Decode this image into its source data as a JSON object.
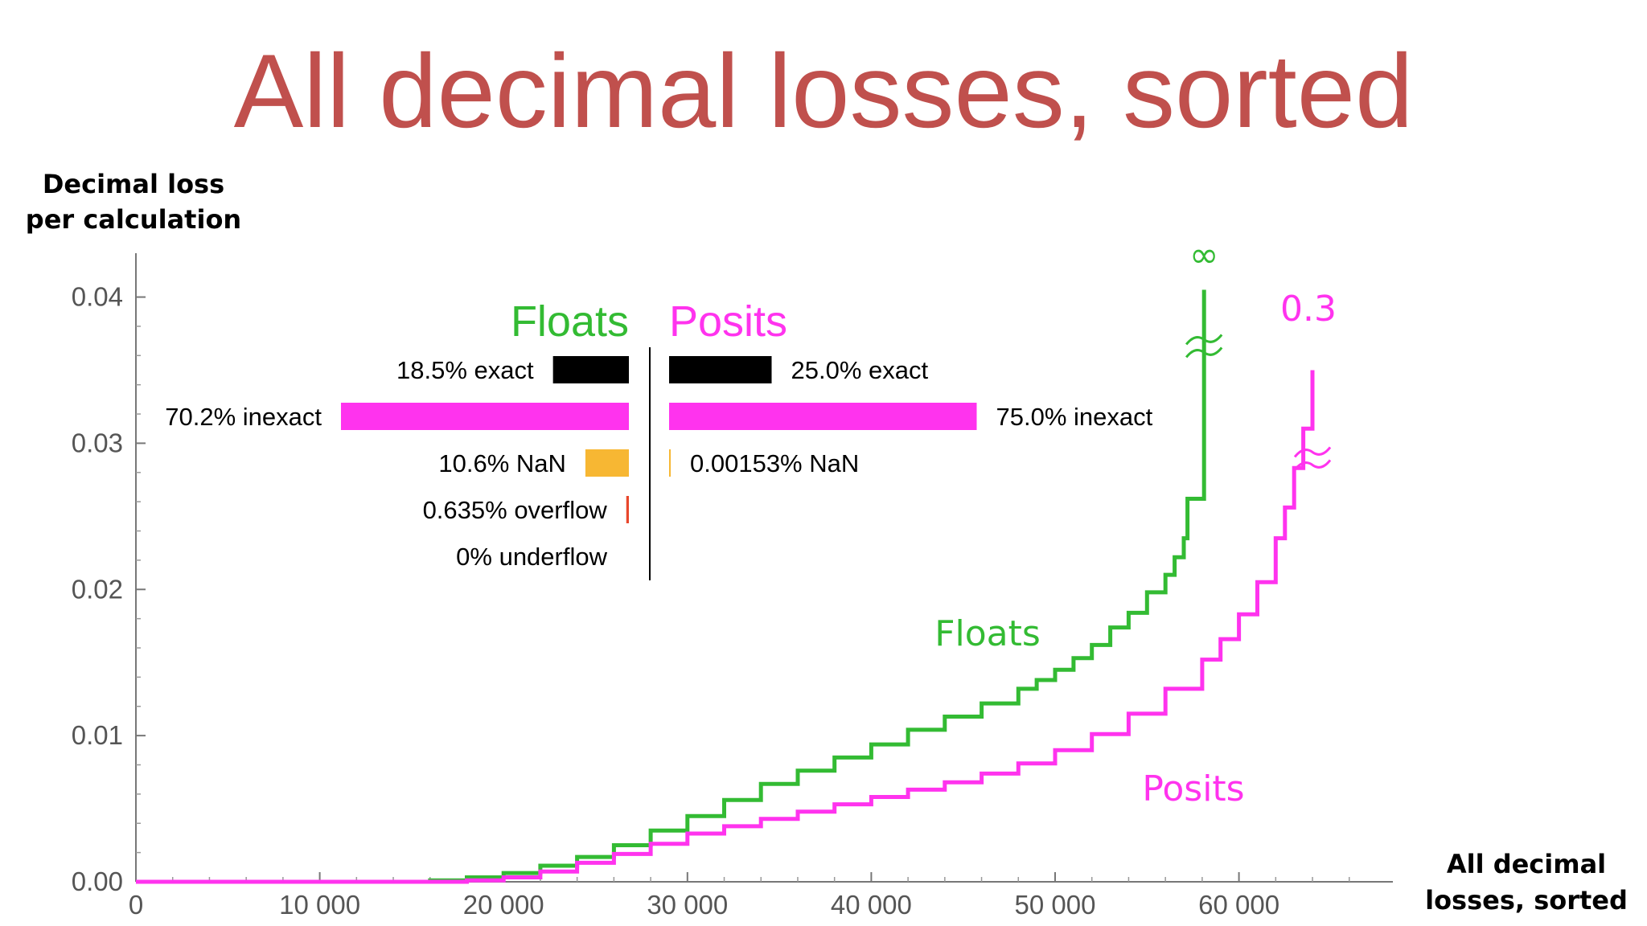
{
  "title": "All decimal losses, sorted",
  "chart_data": {
    "type": "line",
    "ylabel_lines": [
      "Decimal loss",
      "per calculation"
    ],
    "xlabel_lines": [
      "All decimal",
      "losses, sorted"
    ],
    "xlim": [
      0,
      68000
    ],
    "ylim": [
      0,
      0.043
    ],
    "x_ticks": [
      0,
      10000,
      20000,
      30000,
      40000,
      50000,
      60000
    ],
    "x_tick_labels": [
      "0",
      "10 000",
      "20 000",
      "30 000",
      "40 000",
      "50 000",
      "60 000"
    ],
    "y_ticks": [
      0,
      0.01,
      0.02,
      0.03,
      0.04
    ],
    "y_tick_labels": [
      "0.00",
      "0.01",
      "0.02",
      "0.03",
      "0.04"
    ],
    "series": [
      {
        "name": "Floats",
        "color": "#33bb33",
        "end_label": "∞",
        "x": [
          0,
          14000,
          16000,
          18000,
          20000,
          22000,
          24000,
          26000,
          28000,
          30000,
          32000,
          34000,
          36000,
          38000,
          40000,
          42000,
          44000,
          46000,
          48000,
          49000,
          50000,
          51000,
          52000,
          53000,
          54000,
          55000,
          56000,
          56500,
          57000,
          57200,
          58100,
          58100
        ],
        "y": [
          0,
          0,
          0.0001,
          0.0003,
          0.0006,
          0.0011,
          0.0017,
          0.0025,
          0.0035,
          0.0045,
          0.0056,
          0.0067,
          0.0076,
          0.0085,
          0.0094,
          0.0104,
          0.0113,
          0.0122,
          0.0132,
          0.0138,
          0.0145,
          0.0153,
          0.0162,
          0.0174,
          0.0184,
          0.0198,
          0.021,
          0.0222,
          0.0235,
          0.0262,
          0.0262,
          0.0405
        ]
      },
      {
        "name": "Posits",
        "color": "#ff33ee",
        "end_label": "0.3",
        "x": [
          0,
          16000,
          18000,
          20000,
          22000,
          24000,
          26000,
          28000,
          30000,
          32000,
          34000,
          36000,
          38000,
          40000,
          42000,
          44000,
          46000,
          48000,
          50000,
          52000,
          54000,
          56000,
          58000,
          59000,
          60000,
          61000,
          62000,
          62500,
          63000,
          63500,
          64000,
          64000
        ],
        "y": [
          0,
          0,
          0.0001,
          0.0003,
          0.0007,
          0.0013,
          0.0019,
          0.0026,
          0.0033,
          0.0038,
          0.0043,
          0.0048,
          0.0053,
          0.0058,
          0.0063,
          0.0068,
          0.0074,
          0.0081,
          0.009,
          0.0101,
          0.0115,
          0.0132,
          0.0152,
          0.0166,
          0.0183,
          0.0205,
          0.0235,
          0.0256,
          0.0283,
          0.031,
          0.0345,
          0.035
        ]
      }
    ],
    "inset": {
      "floats_title": "Floats",
      "posits_title": "Posits",
      "floats": [
        {
          "label": "18.5% exact",
          "pct": 18.5,
          "color": "#000000"
        },
        {
          "label": "70.2% inexact",
          "pct": 70.2,
          "color": "#ff33ee"
        },
        {
          "label": "10.6% NaN",
          "pct": 10.6,
          "color": "#f7b733"
        },
        {
          "label": "0.635% overflow",
          "pct": 0.635,
          "color": "#e8472c"
        },
        {
          "label": "0% underflow",
          "pct": 0,
          "color": "#000000"
        }
      ],
      "posits": [
        {
          "label": "25.0% exact",
          "pct": 25.0,
          "color": "#000000"
        },
        {
          "label": "75.0% inexact",
          "pct": 75.0,
          "color": "#ff33ee"
        },
        {
          "label": "0.00153% NaN",
          "pct": 0.00153,
          "color": "#f7b733"
        }
      ]
    }
  }
}
